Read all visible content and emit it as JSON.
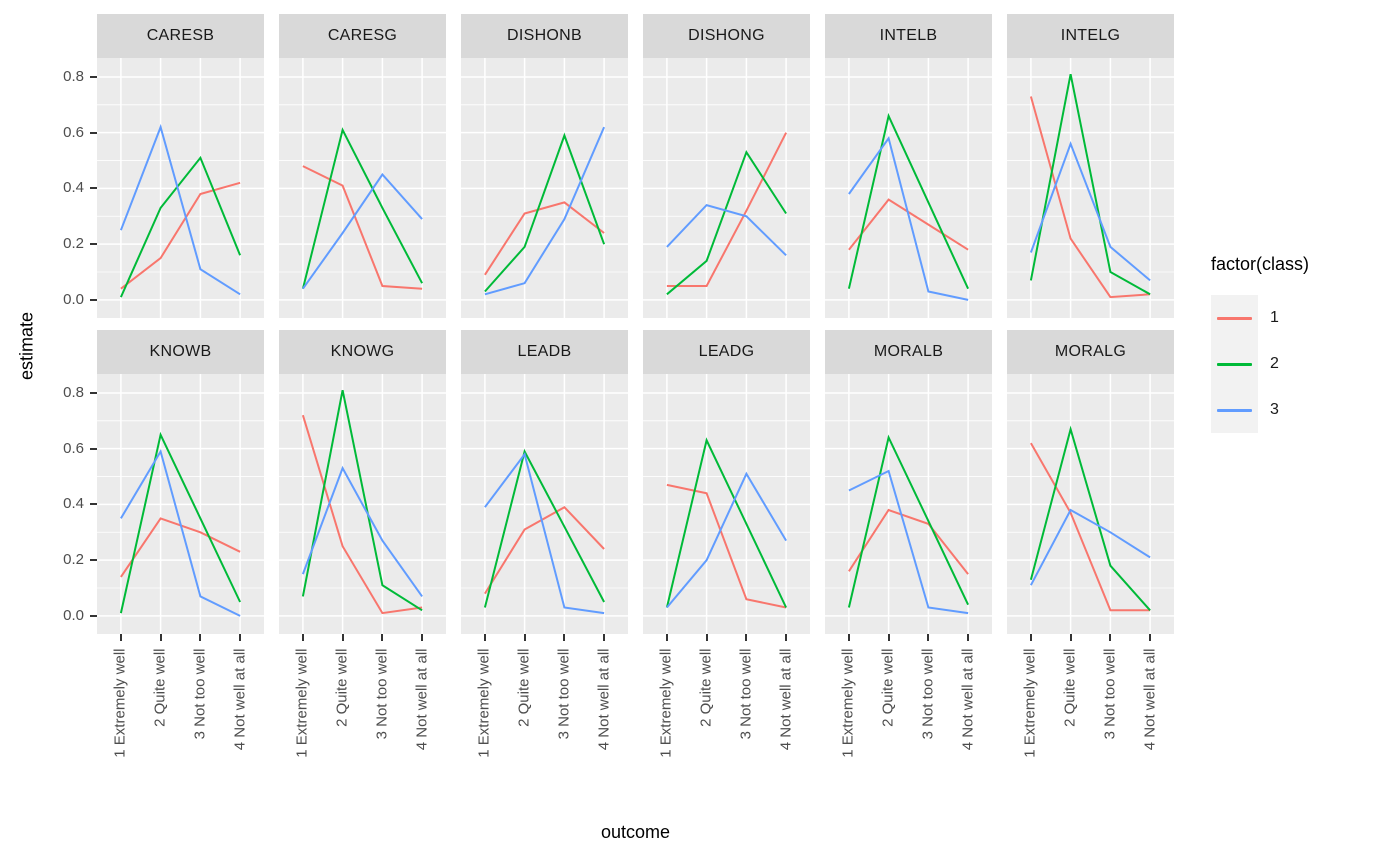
{
  "chart_data": {
    "type": "line",
    "xlabel": "outcome",
    "ylabel": "estimate",
    "categories": [
      "1 Extremely well",
      "2 Quite well",
      "3 Not too well",
      "4 Not well at all"
    ],
    "y_tick_labels": [
      "0.0",
      "0.2",
      "0.4",
      "0.6",
      "0.8"
    ],
    "y_ticks": [
      0.0,
      0.2,
      0.4,
      0.6,
      0.8
    ],
    "ylim": [
      -0.065,
      0.868
    ],
    "grid": "on",
    "legend": {
      "title": "factor(class)",
      "position": "right",
      "entries": [
        {
          "label": "1",
          "color": "#F8766D"
        },
        {
          "label": "2",
          "color": "#00BA38"
        },
        {
          "label": "3",
          "color": "#619CFF"
        }
      ]
    },
    "series_order": [
      "1",
      "2",
      "3"
    ],
    "facets": [
      {
        "name": "CARESB",
        "series": {
          "1": [
            0.04,
            0.15,
            0.38,
            0.42
          ],
          "2": [
            0.01,
            0.33,
            0.51,
            0.16
          ],
          "3": [
            0.25,
            0.62,
            0.11,
            0.02
          ]
        }
      },
      {
        "name": "CARESG",
        "series": {
          "1": [
            0.48,
            0.41,
            0.05,
            0.04
          ],
          "2": [
            0.04,
            0.61,
            0.33,
            0.06
          ],
          "3": [
            0.04,
            0.24,
            0.45,
            0.29
          ]
        }
      },
      {
        "name": "DISHONB",
        "series": {
          "1": [
            0.09,
            0.31,
            0.35,
            0.24
          ],
          "2": [
            0.03,
            0.19,
            0.59,
            0.2
          ],
          "3": [
            0.02,
            0.06,
            0.29,
            0.62
          ]
        }
      },
      {
        "name": "DISHONG",
        "series": {
          "1": [
            0.05,
            0.05,
            0.32,
            0.6
          ],
          "2": [
            0.02,
            0.14,
            0.53,
            0.31
          ],
          "3": [
            0.19,
            0.34,
            0.3,
            0.16
          ]
        }
      },
      {
        "name": "INTELB",
        "series": {
          "1": [
            0.18,
            0.36,
            0.27,
            0.18
          ],
          "2": [
            0.04,
            0.66,
            0.35,
            0.04
          ],
          "3": [
            0.38,
            0.58,
            0.03,
            0.0
          ]
        }
      },
      {
        "name": "INTELG",
        "series": {
          "1": [
            0.73,
            0.22,
            0.01,
            0.02
          ],
          "2": [
            0.07,
            0.81,
            0.1,
            0.02
          ],
          "3": [
            0.17,
            0.56,
            0.19,
            0.07
          ]
        }
      },
      {
        "name": "KNOWB",
        "series": {
          "1": [
            0.14,
            0.35,
            0.3,
            0.23
          ],
          "2": [
            0.01,
            0.65,
            0.35,
            0.05
          ],
          "3": [
            0.35,
            0.59,
            0.07,
            0.0
          ]
        }
      },
      {
        "name": "KNOWG",
        "series": {
          "1": [
            0.72,
            0.25,
            0.01,
            0.03
          ],
          "2": [
            0.07,
            0.81,
            0.11,
            0.02
          ],
          "3": [
            0.15,
            0.53,
            0.27,
            0.07
          ]
        }
      },
      {
        "name": "LEADB",
        "series": {
          "1": [
            0.08,
            0.31,
            0.39,
            0.24
          ],
          "2": [
            0.03,
            0.59,
            0.32,
            0.05
          ],
          "3": [
            0.39,
            0.58,
            0.03,
            0.01
          ]
        }
      },
      {
        "name": "LEADG",
        "series": {
          "1": [
            0.47,
            0.44,
            0.06,
            0.03
          ],
          "2": [
            0.03,
            0.63,
            0.33,
            0.03
          ],
          "3": [
            0.03,
            0.2,
            0.51,
            0.27
          ]
        }
      },
      {
        "name": "MORALB",
        "series": {
          "1": [
            0.16,
            0.38,
            0.33,
            0.15
          ],
          "2": [
            0.03,
            0.64,
            0.34,
            0.04
          ],
          "3": [
            0.45,
            0.52,
            0.03,
            0.01
          ]
        }
      },
      {
        "name": "MORALG",
        "series": {
          "1": [
            0.62,
            0.37,
            0.02,
            0.02
          ],
          "2": [
            0.13,
            0.67,
            0.18,
            0.02
          ],
          "3": [
            0.11,
            0.38,
            0.3,
            0.21
          ]
        }
      }
    ],
    "colors": {
      "panel_background": "#EBEBEB",
      "strip_background": "#D9D9D9",
      "gridline": "#FFFFFF",
      "tick_mark": "#333333",
      "tick_text": "#4D4D4D",
      "legend_key_background": "#F2F2F2"
    }
  }
}
